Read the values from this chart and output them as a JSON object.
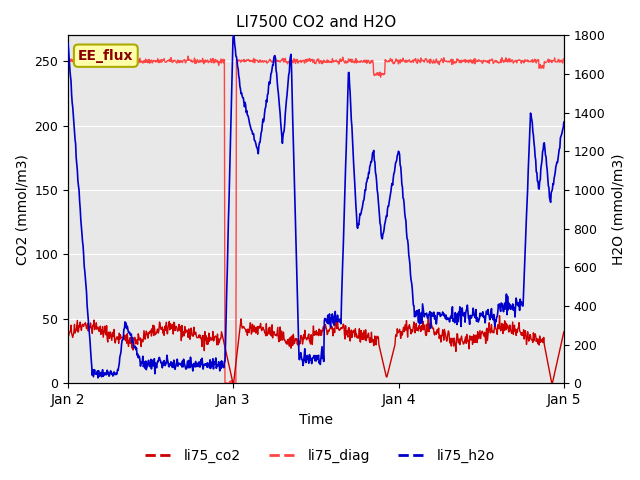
{
  "title": "LI7500 CO2 and H2O",
  "xlabel": "Time",
  "ylabel_left": "CO2 (mmol/m3)",
  "ylabel_right": "H2O (mmol/m3)",
  "ylim_left": [
    0,
    270
  ],
  "ylim_right": [
    0,
    1800
  ],
  "background_color": "#e8e8e8",
  "annotation_text": "EE_flux",
  "annotation_bg": "#ffffaa",
  "annotation_border": "#aaaa00",
  "line_co2_color": "#cc0000",
  "line_diag_color": "#ff4444",
  "line_h2o_color": "#0000cc",
  "legend_labels": [
    "li75_co2",
    "li75_diag",
    "li75_h2o"
  ],
  "xtick_labels": [
    "Jan 2",
    "Jan 3",
    "Jan 4",
    "Jan 5"
  ],
  "xtick_positions": [
    0.0,
    1.0,
    2.0,
    3.0
  ]
}
